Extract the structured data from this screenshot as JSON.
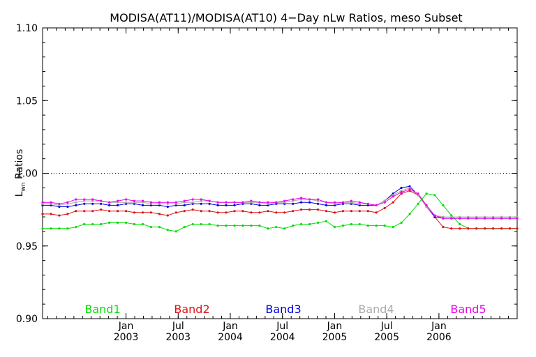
{
  "chart_data": {
    "type": "line",
    "title": "MODISA(AT11)/MODISA(AT10) 4−Day nLw Ratios, meso Subset",
    "ylabel_main": "L",
    "ylabel_sub": "wn",
    "ylabel_rest": " Ratios",
    "ylim": [
      0.9,
      1.1
    ],
    "y_ticks": [
      "0.90",
      "0.95",
      "1.00",
      "1.05",
      "1.10"
    ],
    "reference_line": 1.0,
    "x_range": [
      2002.2,
      2006.75
    ],
    "x_ticks": [
      {
        "x": 2003.0,
        "top": "Jan",
        "bottom": "2003"
      },
      {
        "x": 2003.5,
        "top": "Jul",
        "bottom": "2003"
      },
      {
        "x": 2004.0,
        "top": "Jan",
        "bottom": "2004"
      },
      {
        "x": 2004.5,
        "top": "Jul",
        "bottom": "2004"
      },
      {
        "x": 2005.0,
        "top": "Jan",
        "bottom": "2005"
      },
      {
        "x": 2005.5,
        "top": "Jul",
        "bottom": "2005"
      },
      {
        "x": 2006.0,
        "top": "Jan",
        "bottom": "2006"
      }
    ],
    "x": [
      2002.2,
      2002.28,
      2002.36,
      2002.44,
      2002.52,
      2002.6,
      2002.68,
      2002.76,
      2002.84,
      2002.92,
      2003.0,
      2003.08,
      2003.16,
      2003.24,
      2003.32,
      2003.4,
      2003.48,
      2003.56,
      2003.64,
      2003.72,
      2003.8,
      2003.88,
      2003.96,
      2004.04,
      2004.12,
      2004.2,
      2004.28,
      2004.36,
      2004.44,
      2004.52,
      2004.6,
      2004.68,
      2004.76,
      2004.84,
      2004.92,
      2005.0,
      2005.08,
      2005.16,
      2005.24,
      2005.32,
      2005.4,
      2005.48,
      2005.56,
      2005.64,
      2005.72,
      2005.8,
      2005.88,
      2005.96,
      2006.04,
      2006.12,
      2006.2,
      2006.28,
      2006.36,
      2006.44,
      2006.52,
      2006.6,
      2006.68,
      2006.75
    ],
    "series": [
      {
        "name": "Band1",
        "color": "#00dd00",
        "values": [
          0.962,
          0.962,
          0.962,
          0.962,
          0.963,
          0.965,
          0.965,
          0.965,
          0.966,
          0.966,
          0.966,
          0.965,
          0.965,
          0.963,
          0.963,
          0.961,
          0.96,
          0.963,
          0.965,
          0.965,
          0.965,
          0.964,
          0.964,
          0.964,
          0.964,
          0.964,
          0.964,
          0.962,
          0.963,
          0.962,
          0.964,
          0.965,
          0.965,
          0.966,
          0.967,
          0.963,
          0.964,
          0.965,
          0.965,
          0.964,
          0.964,
          0.964,
          0.963,
          0.966,
          0.972,
          0.979,
          0.986,
          0.985,
          0.978,
          0.971,
          0.965,
          0.962,
          0.962,
          0.962,
          0.962,
          0.962,
          0.962,
          0.962
        ]
      },
      {
        "name": "Band2",
        "color": "#e01010",
        "values": [
          0.972,
          0.972,
          0.971,
          0.972,
          0.974,
          0.974,
          0.974,
          0.975,
          0.974,
          0.974,
          0.974,
          0.973,
          0.973,
          0.973,
          0.972,
          0.971,
          0.973,
          0.974,
          0.975,
          0.974,
          0.974,
          0.973,
          0.973,
          0.974,
          0.974,
          0.973,
          0.973,
          0.974,
          0.973,
          0.973,
          0.974,
          0.975,
          0.975,
          0.975,
          0.974,
          0.973,
          0.974,
          0.974,
          0.974,
          0.974,
          0.973,
          0.976,
          0.98,
          0.986,
          0.988,
          0.985,
          0.978,
          0.97,
          0.963,
          0.962,
          0.962,
          0.962,
          0.962,
          0.962,
          0.962,
          0.962,
          0.962,
          0.962
        ]
      },
      {
        "name": "Band3",
        "color": "#0000dd",
        "values": [
          0.978,
          0.978,
          0.977,
          0.977,
          0.978,
          0.979,
          0.979,
          0.979,
          0.978,
          0.978,
          0.979,
          0.979,
          0.978,
          0.978,
          0.978,
          0.977,
          0.978,
          0.978,
          0.979,
          0.979,
          0.979,
          0.978,
          0.978,
          0.978,
          0.979,
          0.979,
          0.978,
          0.978,
          0.979,
          0.979,
          0.979,
          0.98,
          0.98,
          0.979,
          0.978,
          0.978,
          0.979,
          0.979,
          0.978,
          0.978,
          0.978,
          0.981,
          0.986,
          0.99,
          0.991,
          0.985,
          0.977,
          0.97,
          0.969,
          0.969,
          0.969,
          0.969,
          0.969,
          0.969,
          0.969,
          0.969,
          0.969,
          0.969
        ]
      },
      {
        "name": "Band4",
        "color": "#aaaaaa",
        "values": [
          0.979,
          0.979,
          0.978,
          0.979,
          0.98,
          0.981,
          0.981,
          0.981,
          0.98,
          0.98,
          0.98,
          0.98,
          0.98,
          0.979,
          0.979,
          0.979,
          0.979,
          0.98,
          0.98,
          0.981,
          0.981,
          0.98,
          0.98,
          0.98,
          0.98,
          0.98,
          0.98,
          0.979,
          0.98,
          0.98,
          0.981,
          0.982,
          0.982,
          0.981,
          0.98,
          0.979,
          0.98,
          0.98,
          0.979,
          0.979,
          0.978,
          0.981,
          0.985,
          0.988,
          0.99,
          0.985,
          0.977,
          0.971,
          0.97,
          0.97,
          0.97,
          0.97,
          0.97,
          0.97,
          0.97,
          0.97,
          0.97,
          0.97
        ]
      },
      {
        "name": "Band5",
        "color": "#ee00ee",
        "values": [
          0.98,
          0.98,
          0.979,
          0.98,
          0.982,
          0.982,
          0.982,
          0.981,
          0.98,
          0.981,
          0.982,
          0.981,
          0.981,
          0.98,
          0.98,
          0.98,
          0.98,
          0.981,
          0.982,
          0.982,
          0.981,
          0.98,
          0.98,
          0.98,
          0.98,
          0.981,
          0.98,
          0.98,
          0.98,
          0.981,
          0.982,
          0.983,
          0.982,
          0.982,
          0.98,
          0.98,
          0.98,
          0.981,
          0.98,
          0.979,
          0.978,
          0.98,
          0.984,
          0.987,
          0.989,
          0.986,
          0.978,
          0.971,
          0.969,
          0.969,
          0.969,
          0.969,
          0.969,
          0.969,
          0.969,
          0.969,
          0.969,
          0.969
        ]
      }
    ],
    "legend_placement": "bottom"
  }
}
